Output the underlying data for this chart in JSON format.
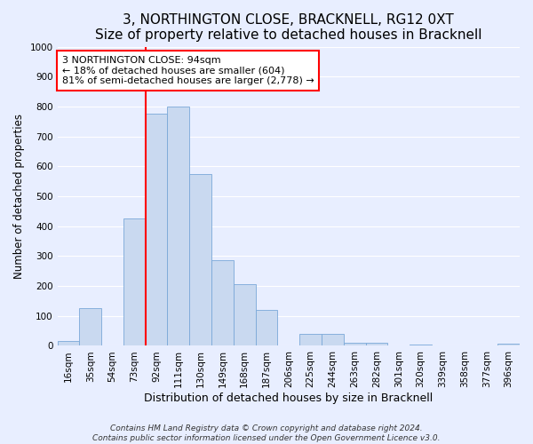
{
  "title": "3, NORTHINGTON CLOSE, BRACKNELL, RG12 0XT",
  "subtitle": "Size of property relative to detached houses in Bracknell",
  "xlabel": "Distribution of detached houses by size in Bracknell",
  "ylabel": "Number of detached properties",
  "bin_labels": [
    "16sqm",
    "35sqm",
    "54sqm",
    "73sqm",
    "92sqm",
    "111sqm",
    "130sqm",
    "149sqm",
    "168sqm",
    "187sqm",
    "206sqm",
    "225sqm",
    "244sqm",
    "263sqm",
    "282sqm",
    "301sqm",
    "320sqm",
    "339sqm",
    "358sqm",
    "377sqm",
    "396sqm"
  ],
  "bar_heights": [
    15,
    125,
    0,
    425,
    775,
    800,
    575,
    285,
    207,
    120,
    0,
    40,
    40,
    10,
    10,
    0,
    5,
    0,
    0,
    0,
    7
  ],
  "bar_color": "#c9d9f0",
  "bar_edge_color": "#7aa8d8",
  "vline_x_index": 4,
  "vline_color": "red",
  "annotation_title": "3 NORTHINGTON CLOSE: 94sqm",
  "annotation_line1": "← 18% of detached houses are smaller (604)",
  "annotation_line2": "81% of semi-detached houses are larger (2,778) →",
  "annotation_box_edgecolor": "red",
  "annotation_box_facecolor": "white",
  "ylim": [
    0,
    1000
  ],
  "yticks": [
    0,
    100,
    200,
    300,
    400,
    500,
    600,
    700,
    800,
    900,
    1000
  ],
  "title_fontsize": 11,
  "xlabel_fontsize": 9,
  "ylabel_fontsize": 8.5,
  "tick_fontsize": 7.5,
  "annotation_fontsize": 8,
  "footer_line1": "Contains HM Land Registry data © Crown copyright and database right 2024.",
  "footer_line2": "Contains public sector information licensed under the Open Government Licence v3.0.",
  "footer_fontsize": 6.5,
  "bg_color": "#e8eeff",
  "plot_bg_color": "#e8eeff",
  "grid_color": "#ffffff",
  "bar_width": 1.0
}
